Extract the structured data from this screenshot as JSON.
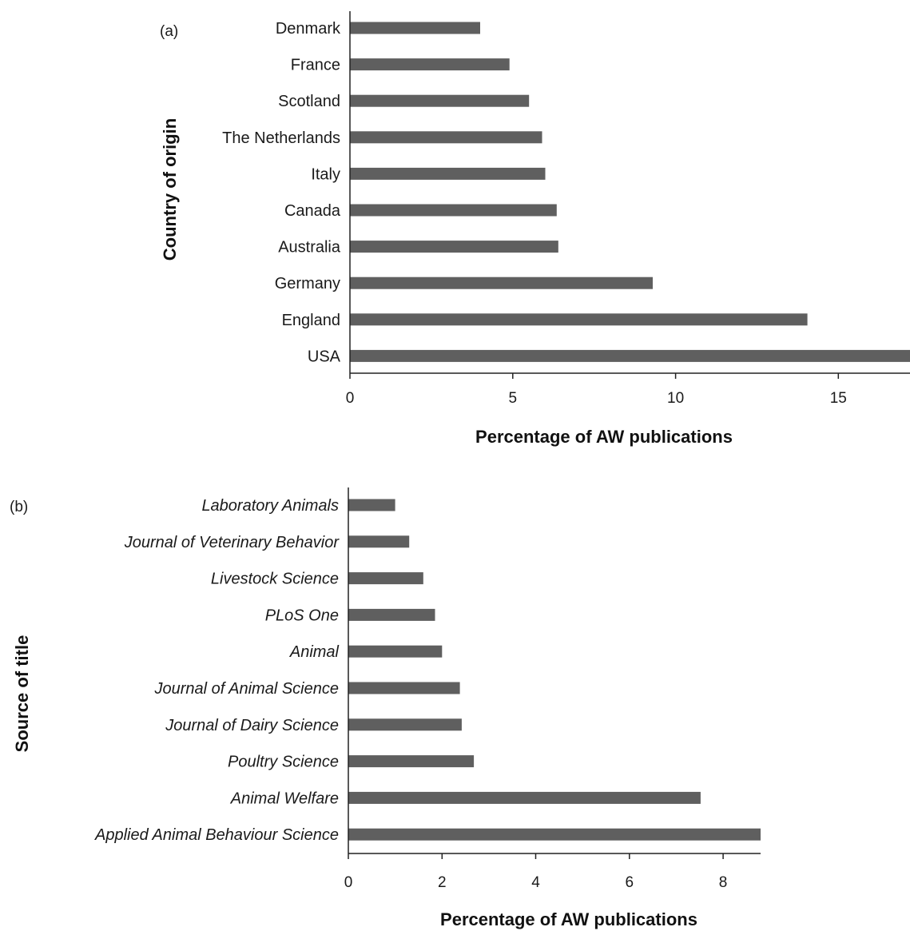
{
  "chart_data": [
    {
      "type": "bar",
      "orientation": "horizontal",
      "panel_label": "(a)",
      "categories": [
        "Denmark",
        "France",
        "Scotland",
        "The Netherlands",
        "Italy",
        "Canada",
        "Australia",
        "Germany",
        "England",
        "USA"
      ],
      "values": [
        4.0,
        4.9,
        5.5,
        5.9,
        6.0,
        6.35,
        6.4,
        9.3,
        14.05,
        17.3
      ],
      "xlabel": "Percentage of AW publications",
      "ylabel": "Country of origin",
      "xlim": [
        0,
        17.2
      ],
      "xticks": [
        "0",
        "5",
        "10",
        "15"
      ],
      "category_style": "normal",
      "grid": false,
      "bar_color": "#5f5f5f"
    },
    {
      "type": "bar",
      "orientation": "horizontal",
      "panel_label": "(b)",
      "categories": [
        "Laboratory Animals",
        "Journal of Veterinary Behavior",
        "Livestock Science",
        "PLoS One",
        "Animal",
        "Journal of Animal Science",
        "Journal of Dairy Science",
        "Poultry Science",
        "Animal Welfare",
        "Applied Animal Behaviour Science"
      ],
      "values": [
        1.0,
        1.3,
        1.6,
        1.85,
        2.0,
        2.38,
        2.42,
        2.68,
        7.52,
        8.8
      ],
      "xlabel": "Percentage of AW publications",
      "ylabel": "Source of title",
      "xlim": [
        0,
        8.8
      ],
      "xticks": [
        "0",
        "2",
        "4",
        "6",
        "8"
      ],
      "category_style": "italic",
      "grid": false,
      "bar_color": "#5f5f5f"
    }
  ]
}
